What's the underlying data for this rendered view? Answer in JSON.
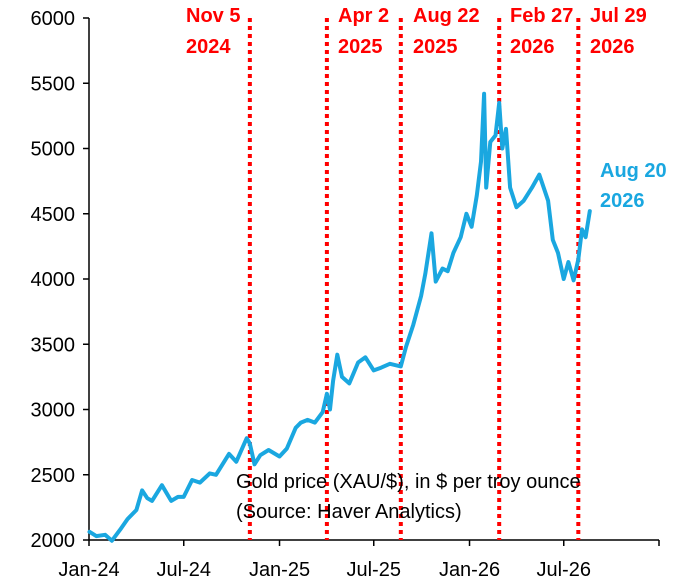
{
  "chart_data": {
    "type": "line",
    "title": "",
    "xlabel": "",
    "ylabel": "",
    "ylim": [
      2000,
      6000
    ],
    "yticks": [
      2000,
      2500,
      3000,
      3500,
      4000,
      4500,
      5000,
      5500,
      6000
    ],
    "xlim": [
      "2024-01-01",
      "2026-12-31"
    ],
    "xticks": [
      {
        "date": "2024-01-01",
        "label": "Jan-24"
      },
      {
        "date": "2024-07-01",
        "label": "Jul-24"
      },
      {
        "date": "2025-01-01",
        "label": "Jan-25"
      },
      {
        "date": "2025-07-01",
        "label": "Jul-25"
      },
      {
        "date": "2026-01-01",
        "label": "Jan-26"
      },
      {
        "date": "2026-07-01",
        "label": "Jul-26"
      }
    ],
    "grid": false,
    "legend": "none",
    "annotation": [
      "Gold price (XAU/$), in $ per troy ounce",
      "(Source: Haver Analytics)"
    ],
    "events": [
      {
        "date": "2024-11-05",
        "label1": "Nov 5",
        "label2": "2024"
      },
      {
        "date": "2025-04-02",
        "label1": "Apr 2",
        "label2": "2025"
      },
      {
        "date": "2025-08-22",
        "label1": "Aug 22",
        "label2": "2025"
      },
      {
        "date": "2026-02-27",
        "label1": "Feb 27",
        "label2": "2026"
      },
      {
        "date": "2026-07-29",
        "label1": "Jul 29",
        "label2": "2026"
      }
    ],
    "last_label": {
      "label1": "Aug 20",
      "label2": "2026"
    },
    "colors": {
      "line": "#1aa7e0",
      "events": "#ff0000",
      "axis": "#000000"
    },
    "series": [
      {
        "x": [
          "2024-01-02",
          "2024-01-15",
          "2024-02-01",
          "2024-02-14",
          "2024-03-01",
          "2024-03-15",
          "2024-04-01",
          "2024-04-12",
          "2024-04-22",
          "2024-05-01",
          "2024-05-20",
          "2024-06-07",
          "2024-06-20",
          "2024-07-01",
          "2024-07-17",
          "2024-08-01",
          "2024-08-20",
          "2024-09-01",
          "2024-09-26",
          "2024-10-10",
          "2024-10-30",
          "2024-11-05",
          "2024-11-14",
          "2024-11-25",
          "2024-12-11",
          "2025-01-01",
          "2025-01-15",
          "2025-02-01",
          "2025-02-11",
          "2025-02-24",
          "2025-03-10",
          "2025-03-25",
          "2025-04-02",
          "2025-04-08",
          "2025-04-14",
          "2025-04-22",
          "2025-05-01",
          "2025-05-15",
          "2025-06-01",
          "2025-06-15",
          "2025-07-01",
          "2025-07-15",
          "2025-08-01",
          "2025-08-22",
          "2025-09-01",
          "2025-09-15",
          "2025-09-30",
          "2025-10-08",
          "2025-10-20",
          "2025-10-28",
          "2025-11-10",
          "2025-11-20",
          "2025-12-01",
          "2025-12-15",
          "2025-12-26",
          "2026-01-05",
          "2026-01-15",
          "2026-01-23",
          "2026-01-29",
          "2026-02-02",
          "2026-02-10",
          "2026-02-20",
          "2026-02-27",
          "2026-03-05",
          "2026-03-12",
          "2026-03-20",
          "2026-04-01",
          "2026-04-15",
          "2026-05-01",
          "2026-05-15",
          "2026-06-01",
          "2026-06-10",
          "2026-06-20",
          "2026-07-01",
          "2026-07-10",
          "2026-07-20",
          "2026-07-29",
          "2026-08-05",
          "2026-08-12",
          "2026-08-20"
        ],
        "values": [
          2063,
          2030,
          2040,
          1995,
          2080,
          2160,
          2230,
          2380,
          2320,
          2300,
          2420,
          2300,
          2330,
          2330,
          2460,
          2440,
          2510,
          2500,
          2660,
          2600,
          2780,
          2740,
          2580,
          2650,
          2690,
          2640,
          2700,
          2860,
          2900,
          2920,
          2900,
          2980,
          3120,
          3000,
          3220,
          3420,
          3250,
          3200,
          3360,
          3400,
          3300,
          3320,
          3350,
          3330,
          3480,
          3650,
          3870,
          4040,
          4350,
          3980,
          4080,
          4060,
          4200,
          4320,
          4500,
          4400,
          4640,
          4900,
          5420,
          4700,
          5050,
          5100,
          5350,
          5000,
          5150,
          4700,
          4550,
          4600,
          4700,
          4800,
          4600,
          4300,
          4200,
          4000,
          4130,
          3990,
          4150,
          4380,
          4320,
          4520
        ]
      }
    ]
  }
}
